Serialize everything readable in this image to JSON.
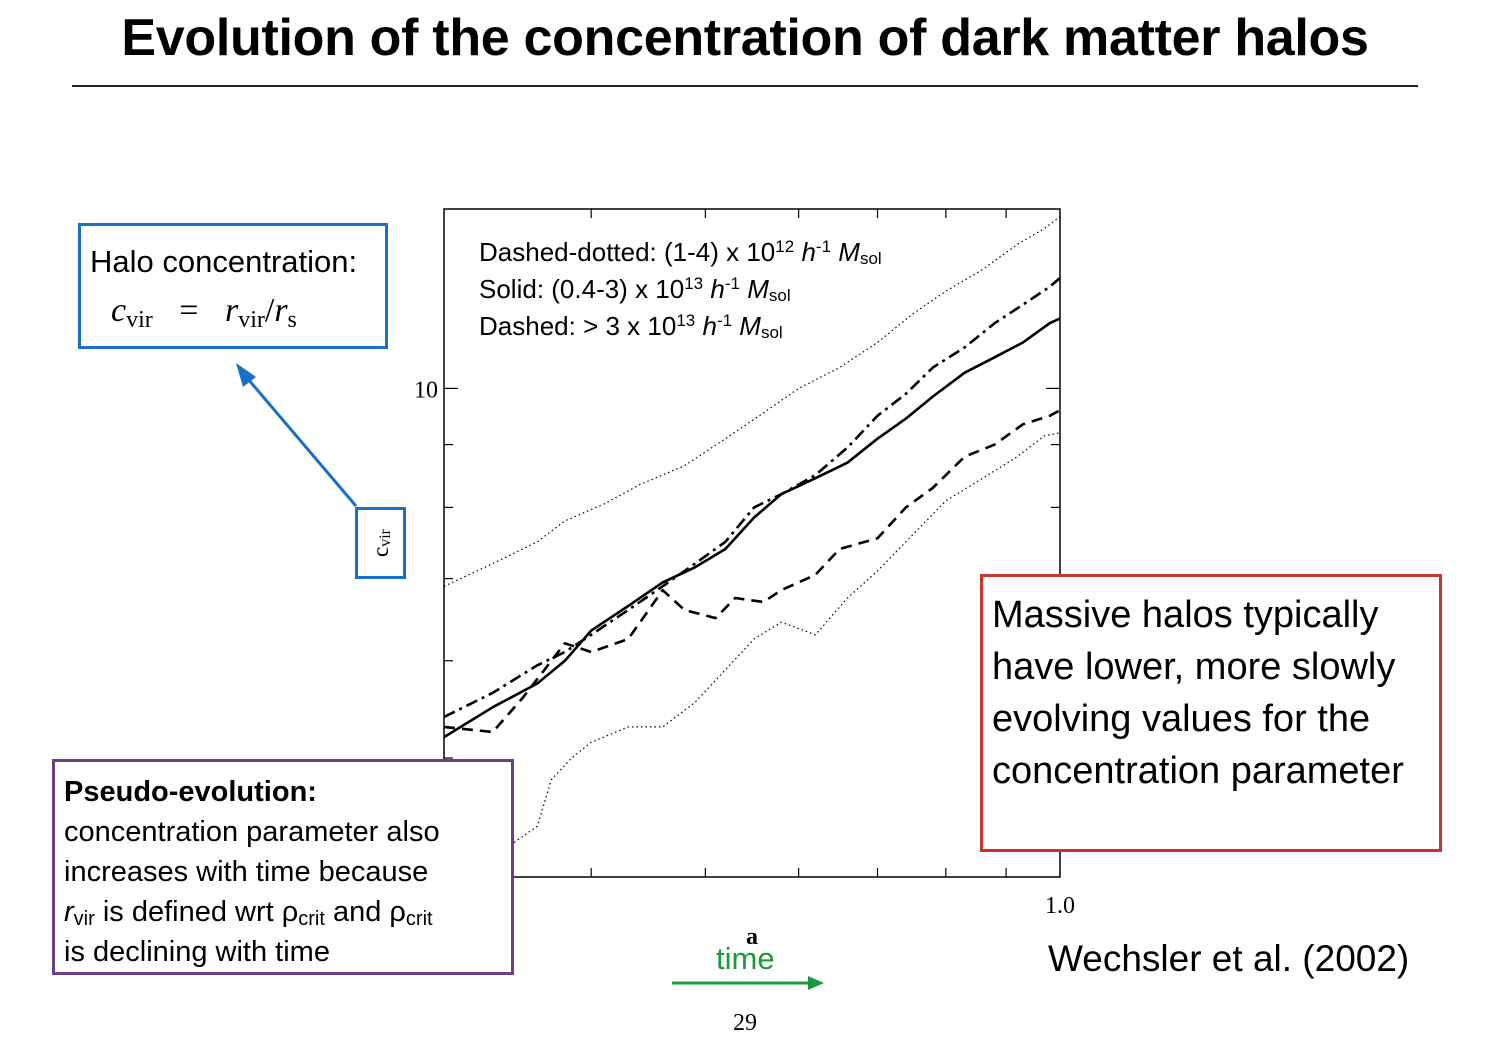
{
  "slide": {
    "title": "Evolution of the concentration of dark matter halos",
    "page_number": "29",
    "reference": "Wechsler et al. (2002)",
    "time_label": "time",
    "colors": {
      "blue_box": "#1a6fc7",
      "purple_box": "#6b3e8c",
      "red_box": "#c8352c",
      "time_arrow": "#1d9a3c"
    }
  },
  "halo_box": {
    "label": "Halo concentration:",
    "formula_lhs": "c",
    "formula_lhs_sub": "vir",
    "formula_eq": "=",
    "formula_num": "r",
    "formula_num_sub": "vir",
    "formula_slash": "/",
    "formula_den": "r",
    "formula_den_sub": "s"
  },
  "pseudo_box": {
    "heading": "Pseudo-evolution:",
    "line1": "concentration parameter also",
    "line2": "increases with time because",
    "line3_r": "r",
    "line3_r_sub": "vir",
    "line3_mid": " is defined wrt ρ",
    "line3_crit1": "crit",
    "line3_and": " and ρ",
    "line3_crit2": "crit",
    "line4": "is declining with time"
  },
  "massive_box": {
    "text": "Massive halos typically have lower, more slowly evolving values for the concentration parameter"
  },
  "legend": {
    "l1_prefix": "Dashed-dotted: (1-4) x 10",
    "l1_exp": "12",
    "l2_prefix": "Solid: (0.4-3) x 10",
    "l2_exp": "13",
    "l3_prefix": "Dashed: > 3 x 10",
    "l3_exp": "13",
    "h": "h",
    "h_exp": "-1",
    "M": "M",
    "M_sub": "sol"
  },
  "chart_data": {
    "type": "line",
    "xlabel": "a",
    "ylabel": "c",
    "ylabel_sub": "vir",
    "y_scale": "log",
    "x_scale": "log",
    "xlim": [
      0.3,
      1.0
    ],
    "ylim": [
      4,
      14
    ],
    "x_tick_labels": [
      {
        "x": 1.0,
        "label": "1.0"
      }
    ],
    "y_tick_labels": [
      {
        "y": 10,
        "label": "10"
      }
    ],
    "series": [
      {
        "style": "solid",
        "x": [
          0.3,
          0.33,
          0.36,
          0.38,
          0.4,
          0.43,
          0.46,
          0.49,
          0.52,
          0.55,
          0.58,
          0.62,
          0.66,
          0.7,
          0.74,
          0.78,
          0.83,
          0.88,
          0.93,
          0.98,
          1.0
        ],
        "y": [
          5.2,
          5.5,
          5.75,
          6.0,
          6.35,
          6.65,
          6.95,
          7.15,
          7.4,
          7.85,
          8.2,
          8.45,
          8.7,
          9.1,
          9.45,
          9.85,
          10.3,
          10.6,
          10.9,
          11.3,
          11.4
        ]
      },
      {
        "style": "dash-dot",
        "x": [
          0.3,
          0.33,
          0.36,
          0.38,
          0.4,
          0.43,
          0.46,
          0.49,
          0.52,
          0.55,
          0.58,
          0.62,
          0.66,
          0.7,
          0.74,
          0.78,
          0.83,
          0.88,
          0.93,
          0.98,
          1.0
        ],
        "y": [
          5.4,
          5.65,
          5.95,
          6.1,
          6.3,
          6.6,
          6.9,
          7.2,
          7.5,
          8.0,
          8.2,
          8.5,
          8.95,
          9.5,
          9.9,
          10.4,
          10.8,
          11.3,
          11.7,
          12.1,
          12.3
        ]
      },
      {
        "style": "dashed",
        "x": [
          0.3,
          0.33,
          0.35,
          0.38,
          0.4,
          0.43,
          0.46,
          0.48,
          0.51,
          0.53,
          0.56,
          0.58,
          0.62,
          0.65,
          0.7,
          0.74,
          0.78,
          0.83,
          0.88,
          0.93,
          0.98,
          1.0
        ],
        "y": [
          5.3,
          5.25,
          5.6,
          6.2,
          6.1,
          6.25,
          6.85,
          6.6,
          6.5,
          6.75,
          6.7,
          6.85,
          7.05,
          7.4,
          7.55,
          8.0,
          8.3,
          8.8,
          9.0,
          9.35,
          9.5,
          9.6
        ]
      },
      {
        "style": "dotted",
        "x": [
          0.3,
          0.33,
          0.36,
          0.38,
          0.41,
          0.44,
          0.48,
          0.52,
          0.56,
          0.6,
          0.65,
          0.7,
          0.75,
          0.8,
          0.86,
          0.92,
          0.97,
          1.0
        ],
        "y": [
          6.9,
          7.2,
          7.5,
          7.8,
          8.05,
          8.35,
          8.65,
          9.1,
          9.55,
          10.0,
          10.4,
          10.9,
          11.5,
          12.0,
          12.5,
          13.1,
          13.5,
          13.8
        ]
      },
      {
        "style": "dotted",
        "x": [
          0.3,
          0.33,
          0.36,
          0.37,
          0.385,
          0.4,
          0.43,
          0.46,
          0.49,
          0.52,
          0.55,
          0.58,
          0.62,
          0.66,
          0.7,
          0.74,
          0.8,
          0.86,
          0.92,
          0.97,
          1.0
        ],
        "y": [
          4.05,
          4.15,
          4.4,
          4.8,
          5.0,
          5.15,
          5.3,
          5.3,
          5.55,
          5.9,
          6.25,
          6.45,
          6.3,
          6.75,
          7.1,
          7.5,
          8.1,
          8.45,
          8.8,
          9.15,
          9.2
        ]
      }
    ]
  }
}
